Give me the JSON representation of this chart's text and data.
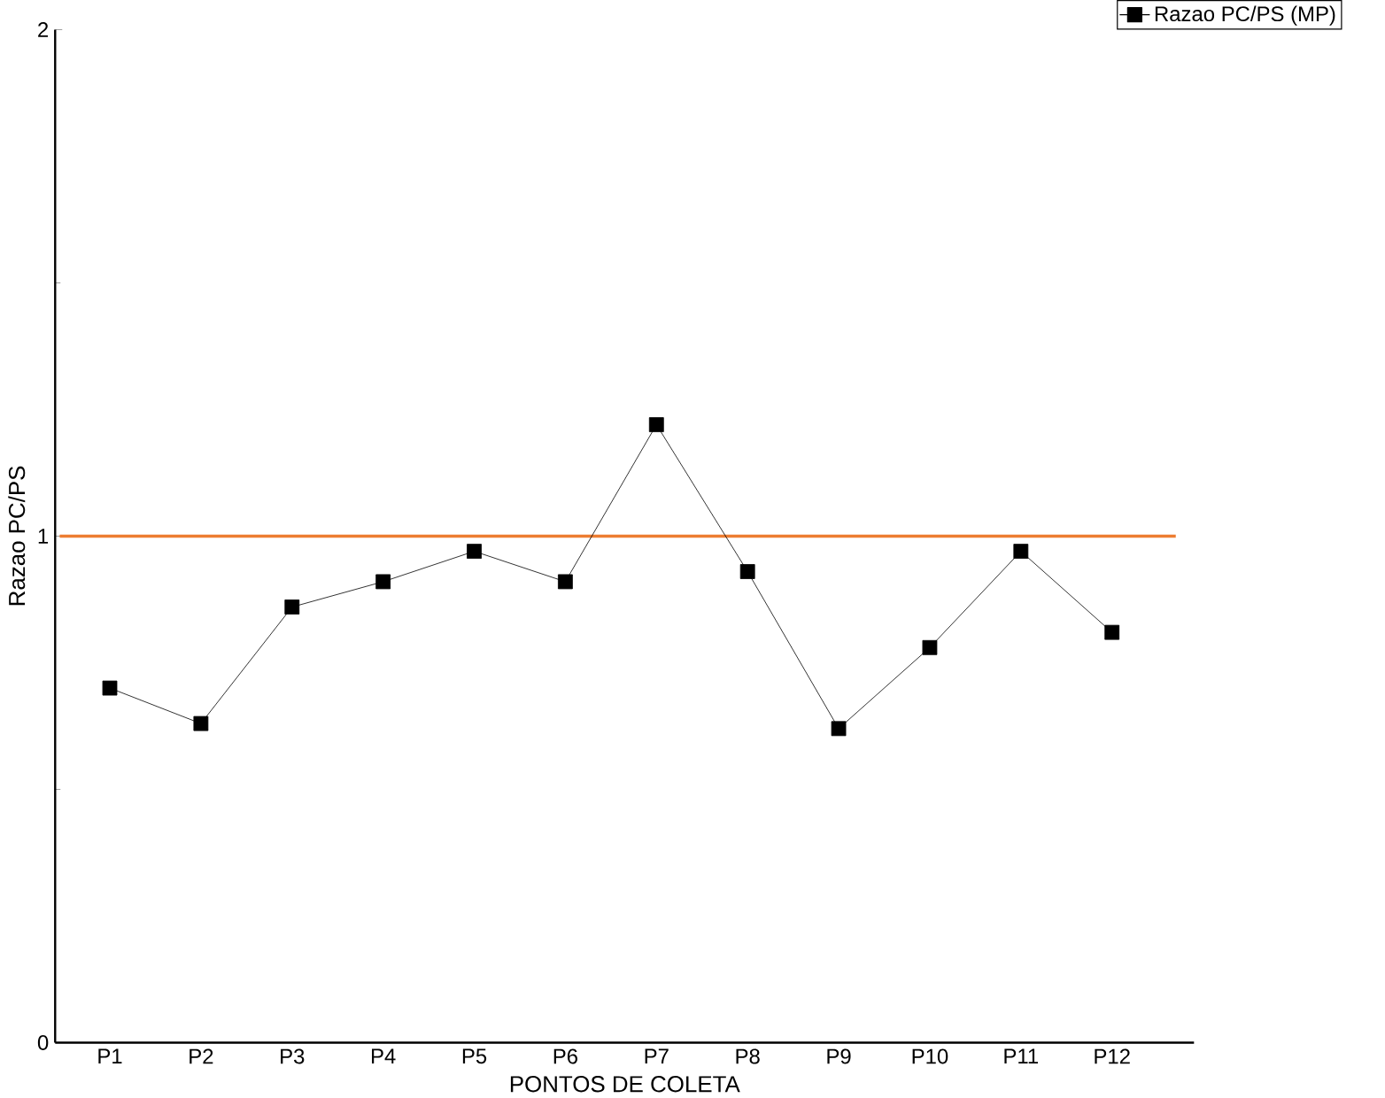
{
  "chart_data": {
    "type": "line",
    "xlabel": "PONTOS DE COLETA",
    "ylabel": "Razao PC/PS",
    "categories": [
      "P1",
      "P2",
      "P3",
      "P4",
      "P5",
      "P6",
      "P7",
      "P8",
      "P9",
      "P10",
      "P11",
      "P12"
    ],
    "series": [
      {
        "name": "Razao PC/PS (MP)",
        "color": "#000000",
        "values": [
          0.7,
          0.63,
          0.86,
          0.91,
          0.97,
          0.91,
          1.22,
          0.93,
          0.62,
          0.78,
          0.97,
          0.81
        ]
      }
    ],
    "ylim": [
      0,
      2
    ],
    "yticks": [
      0,
      1,
      2
    ],
    "marker": "square",
    "line_style": "solid",
    "legend": "top right",
    "grid": false,
    "ref_lines": [
      {
        "axis": "y",
        "value": 1,
        "color": "#ed7d31"
      }
    ]
  }
}
